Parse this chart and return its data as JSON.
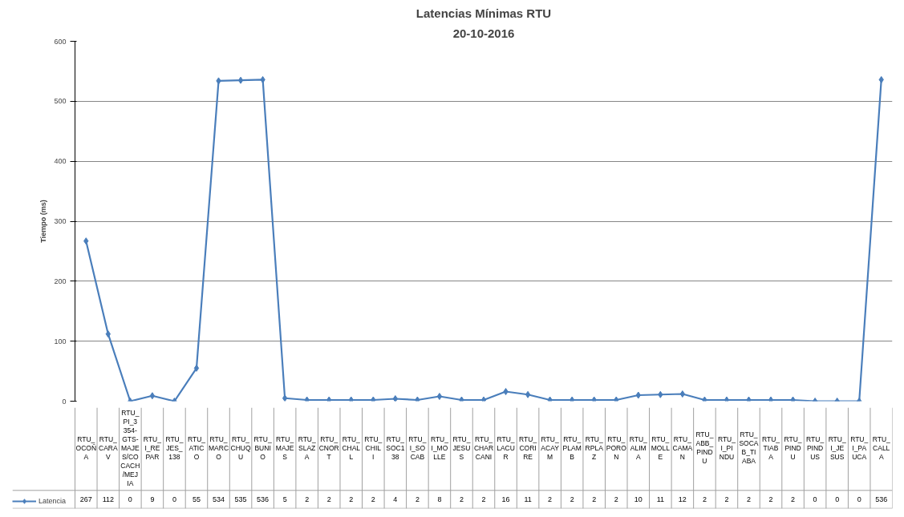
{
  "chart_data": {
    "type": "line",
    "title": "Latencias Mínimas RTU",
    "subtitle": "20-10-2016",
    "ylabel": "Tiempo (ms)",
    "categories": [
      "RTU_OCOÑA",
      "RTU_CARAV",
      "RTU_PI_3354-GTS-MAJES/COCACH/MEJIA",
      "RTU_I_REPAR",
      "RTU_JES_138",
      "RTU_ATICO",
      "RTU_MARCO",
      "RTU_CHUQU",
      "RTU_BUNIO",
      "RTU_MAJES",
      "RTU_SLAZA",
      "RTU_CNORT",
      "RTU_CHALL",
      "RTU_CHILI",
      "RTU_SOC138",
      "RTU_I_SOCAB",
      "RTU_I_MOLLE",
      "RTU_JESUS",
      "RTU_CHARCANI",
      "RTU_LACUR",
      "RTU_CORIRE",
      "RTU_ACAYM",
      "RTU_PLAMB",
      "RTU_RPLAZ",
      "RTU_PORON",
      "RTU_ALIMA",
      "RTU_MOLLE",
      "RTU_CAMAN",
      "RTU_ABB_PINDU",
      "RTU_I_PINDU",
      "RTU_SOCAB_TIABA",
      "RTU_TIABA",
      "RTU_PINDU",
      "RTU_PINDUS",
      "RTU_I_JESUS",
      "RTU_I_PAUCA",
      "RTU_CALLA"
    ],
    "series": [
      {
        "name": "Latencia",
        "color": "#4a7ebb",
        "values": [
          267,
          112,
          0,
          9,
          0,
          55,
          534,
          535,
          536,
          5,
          2,
          2,
          2,
          2,
          4,
          2,
          8,
          2,
          2,
          16,
          11,
          2,
          2,
          2,
          2,
          10,
          11,
          12,
          2,
          2,
          2,
          2,
          2,
          0,
          0,
          0,
          536
        ]
      }
    ],
    "ylim": [
      0,
      600
    ],
    "yticks": [
      0,
      100,
      200,
      300,
      400,
      500,
      600
    ],
    "grid": "y",
    "marker": "diamond",
    "line_style": "solid",
    "legend": "bottom",
    "data_labels": true
  }
}
